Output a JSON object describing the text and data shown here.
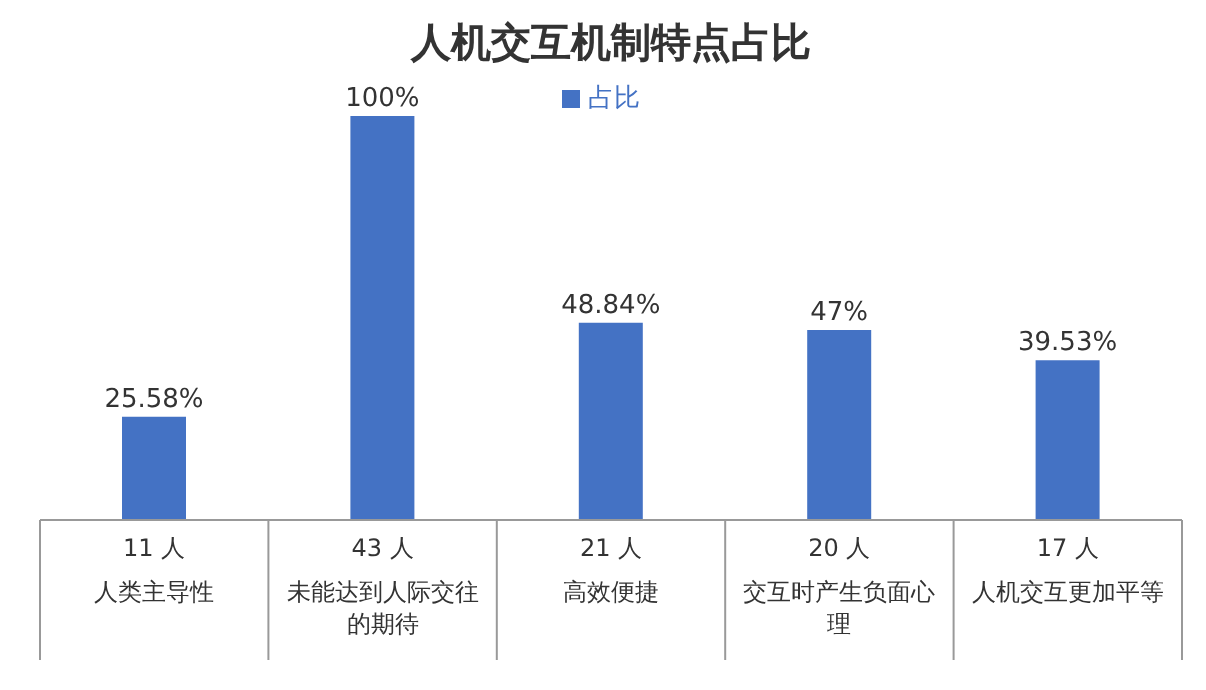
{
  "chart_data": {
    "type": "bar",
    "title": "人机交互机制特点占比",
    "categories": [
      "人类主导性",
      "未能达到人际交往的期待",
      "高效便捷",
      "交互时产生负面心理",
      "人机交互更加平等"
    ],
    "annotations": [
      "11 人",
      "43 人",
      "21 人",
      "20 人",
      "17 人"
    ],
    "series": [
      {
        "name": "占比",
        "color": "#4472c4",
        "values": [
          25.58,
          100,
          48.84,
          47,
          39.53
        ],
        "value_labels": [
          "25.58%",
          "100%",
          "48.84%",
          "47%",
          "39.53%"
        ]
      }
    ],
    "legend": "top"
  }
}
